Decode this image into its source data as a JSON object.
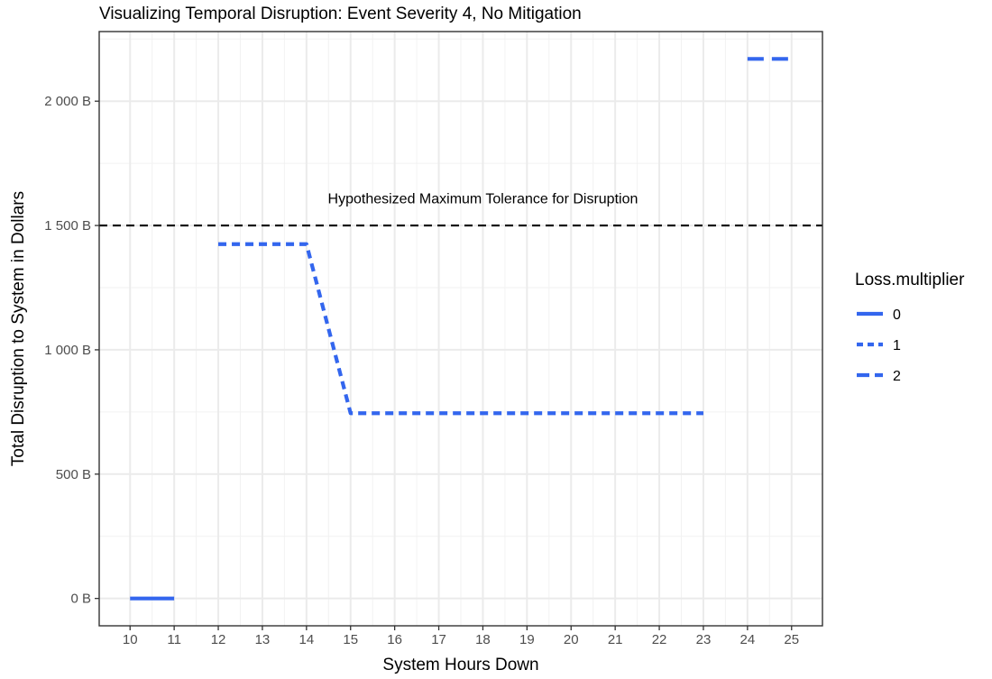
{
  "chart_data": {
    "type": "line",
    "title": "Visualizing Temporal Disruption: Event Severity 4, No Mitigation",
    "xlabel": "System Hours Down",
    "ylabel": "Total Disruption to System in Dollars",
    "xlim": [
      9.3,
      25.7
    ],
    "ylim": [
      -110,
      2280
    ],
    "x_ticks": [
      10,
      11,
      12,
      13,
      14,
      15,
      16,
      17,
      18,
      19,
      20,
      21,
      22,
      23,
      24,
      25
    ],
    "x_tick_labels": [
      "10",
      "11",
      "12",
      "13",
      "14",
      "15",
      "16",
      "17",
      "18",
      "19",
      "20",
      "21",
      "22",
      "23",
      "24",
      "25"
    ],
    "y_ticks": [
      0,
      500,
      1000,
      1500,
      2000
    ],
    "y_tick_labels": [
      "0 B",
      "500 B",
      "1 000 B",
      "1 500 B",
      "2 000 B"
    ],
    "grid": true,
    "legend_position": "right",
    "legend_title": "Loss.multiplier",
    "series": [
      {
        "name": "0",
        "linetype": "solid",
        "color": "#3366ee",
        "x": [
          10,
          11
        ],
        "y": [
          0,
          0
        ]
      },
      {
        "name": "1",
        "linetype": "dashed",
        "color": "#3366ee",
        "x": [
          12,
          13,
          14,
          15,
          16,
          17,
          18,
          19,
          20,
          21,
          22,
          23
        ],
        "y": [
          1425,
          1425,
          1425,
          745,
          745,
          745,
          745,
          745,
          745,
          745,
          745,
          745
        ]
      },
      {
        "name": "2",
        "linetype": "longdash",
        "color": "#3366ee",
        "x": [
          24,
          25
        ],
        "y": [
          2170,
          2170
        ]
      }
    ],
    "reference_line": {
      "y": 1500,
      "color": "#000000",
      "linetype": "dashed"
    },
    "annotation": {
      "text": "Hypothesized Maximum Tolerance for Disruption",
      "x": 18,
      "y": 1590
    }
  }
}
